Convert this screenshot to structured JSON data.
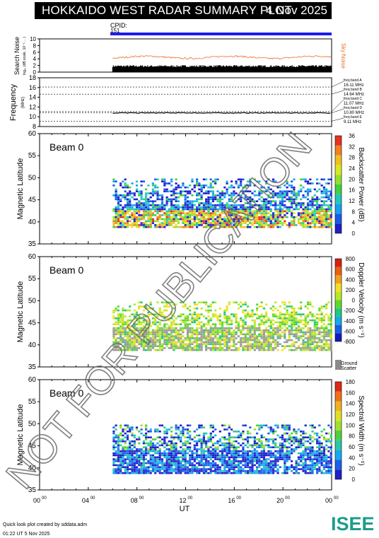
{
  "header": {
    "title": "HOKKAIDO WEST RADAR SUMMARY PLOT",
    "date": "4 Nov 2025"
  },
  "cpid": {
    "label": "CPID:",
    "value": "151"
  },
  "noise_panel": {
    "ylabel": "Search Noise",
    "ylabel_sub": "log₁₀ (dB scale, 10⁻³ ... )",
    "side_label": "Sky Noise",
    "yticks": [
      "0",
      "2",
      "4",
      "6",
      "8",
      "10"
    ],
    "sky_color": "#e8702a"
  },
  "freq_panel": {
    "ylabel": "Frequency",
    "unit": "(MHz)",
    "yticks": [
      "8",
      "10",
      "12",
      "14",
      "16",
      "18"
    ],
    "bands": [
      {
        "name": "freq band A",
        "freq": "16.11 MHz",
        "value": 16.11
      },
      {
        "name": "freq band B",
        "freq": "14.64 MHz",
        "value": 14.64
      },
      {
        "name": "freq band C",
        "freq": "11.07 MHz",
        "value": 11.07
      },
      {
        "name": "freq band D",
        "freq": "10.80 MHz",
        "value": 10.8
      },
      {
        "name": "freq band E",
        "freq": "9.11 MHz",
        "value": 9.11
      }
    ]
  },
  "panels": [
    {
      "beam_label": "Beam  0",
      "ylabel": "Magnetic Latitude",
      "yticks": [
        "35",
        "40",
        "45",
        "50",
        "55",
        "60"
      ],
      "cb_label": "Backscatter Power (dB)",
      "cb_ticks": [
        "0",
        "4",
        "8",
        "12",
        "16",
        "20",
        "24",
        "28",
        "32",
        "36"
      ]
    },
    {
      "beam_label": "Beam  0",
      "ylabel": "Magnetic Latitude",
      "yticks": [
        "35",
        "40",
        "45",
        "50",
        "55",
        "60"
      ],
      "cb_label": "Doppler Velocity (m s⁻¹)",
      "cb_ticks": [
        "-800",
        "-600",
        "-400",
        "-200",
        "0",
        "200",
        "400",
        "600",
        "800"
      ],
      "ground_label_1": "Ground",
      "ground_label_2": "Scatter"
    },
    {
      "beam_label": "Beam  0",
      "ylabel": "Magnetic Latitude",
      "yticks": [
        "35",
        "40",
        "45",
        "50",
        "55",
        "60"
      ],
      "cb_label": "Spectral Width (m s⁻¹)",
      "cb_ticks": [
        "0",
        "20",
        "40",
        "60",
        "80",
        "100",
        "120",
        "140",
        "160",
        "180"
      ]
    }
  ],
  "xaxis": {
    "label": "UT",
    "ticks": [
      "00",
      "04",
      "08",
      "12",
      "16",
      "20",
      "00"
    ],
    "tick_sup": "00"
  },
  "footer": {
    "line1": "Quick look plot created by sddata.adm",
    "line2": "01:22 UT  5 Nov 2025"
  },
  "logo": {
    "text": "ISEE",
    "color": "#1c9c8c"
  },
  "watermark": "NOT FOR PUBLICATION",
  "chart_data": {
    "type": "heatmap",
    "x_range_hours": [
      0,
      24
    ],
    "data_start_hour": 6,
    "ylim_latitude": [
      35,
      60
    ],
    "noise_ylim": [
      0,
      10
    ],
    "freq_ylim": [
      8,
      18
    ],
    "sky_noise_level": 4.2,
    "search_noise_level": 1.5,
    "operating_frequency_mhz": 10.8,
    "parameters": [
      "Backscatter Power (dB)",
      "Doppler Velocity (m s⁻¹)",
      "Spectral Width (m s⁻¹)"
    ]
  }
}
